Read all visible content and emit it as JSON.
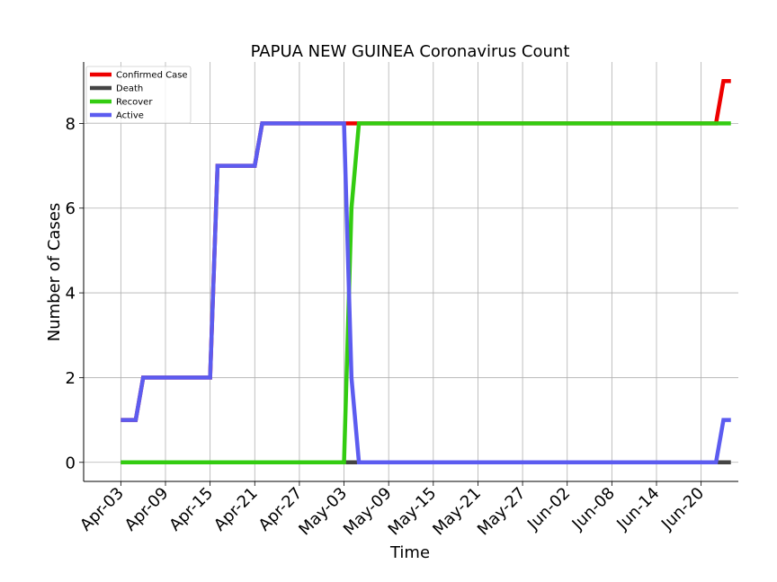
{
  "chart_data": {
    "type": "line",
    "title": "PAPUA NEW GUINEA Coronavirus Count",
    "xlabel": "Time",
    "ylabel": "Number of Cases",
    "x_tick_labels": [
      "Apr-03",
      "Apr-09",
      "Apr-15",
      "Apr-21",
      "Apr-27",
      "May-03",
      "May-09",
      "May-15",
      "May-21",
      "May-27",
      "Jun-02",
      "Jun-08",
      "Jun-14",
      "Jun-20"
    ],
    "y_tick_labels": [
      "0",
      "2",
      "4",
      "6",
      "8"
    ],
    "ylim": [
      -0.45,
      9.45
    ],
    "xlim": [
      "2020-03-29",
      "2020-06-25"
    ],
    "grid": true,
    "legend_position": "top-left",
    "x_start": "2020-04-03",
    "x_end": "2020-06-24",
    "series": [
      {
        "name": "Confirmed Case",
        "color": "#ee0000",
        "steps": [
          {
            "date": "2020-04-03",
            "value": 1
          },
          {
            "date": "2020-04-06",
            "value": 2
          },
          {
            "date": "2020-04-16",
            "value": 7
          },
          {
            "date": "2020-04-22",
            "value": 8
          },
          {
            "date": "2020-06-23",
            "value": 9
          }
        ]
      },
      {
        "name": "Death",
        "color": "#444444",
        "steps": [
          {
            "date": "2020-04-03",
            "value": 0
          }
        ]
      },
      {
        "name": "Recover",
        "color": "#33cc11",
        "steps": [
          {
            "date": "2020-04-03",
            "value": 0
          },
          {
            "date": "2020-05-04",
            "value": 6
          },
          {
            "date": "2020-05-05",
            "value": 8
          }
        ]
      },
      {
        "name": "Active",
        "color": "#5c5cf0",
        "steps": [
          {
            "date": "2020-04-03",
            "value": 1
          },
          {
            "date": "2020-04-06",
            "value": 2
          },
          {
            "date": "2020-04-16",
            "value": 7
          },
          {
            "date": "2020-04-22",
            "value": 8
          },
          {
            "date": "2020-05-04",
            "value": 2
          },
          {
            "date": "2020-05-05",
            "value": 0
          },
          {
            "date": "2020-06-23",
            "value": 1
          }
        ]
      }
    ]
  }
}
